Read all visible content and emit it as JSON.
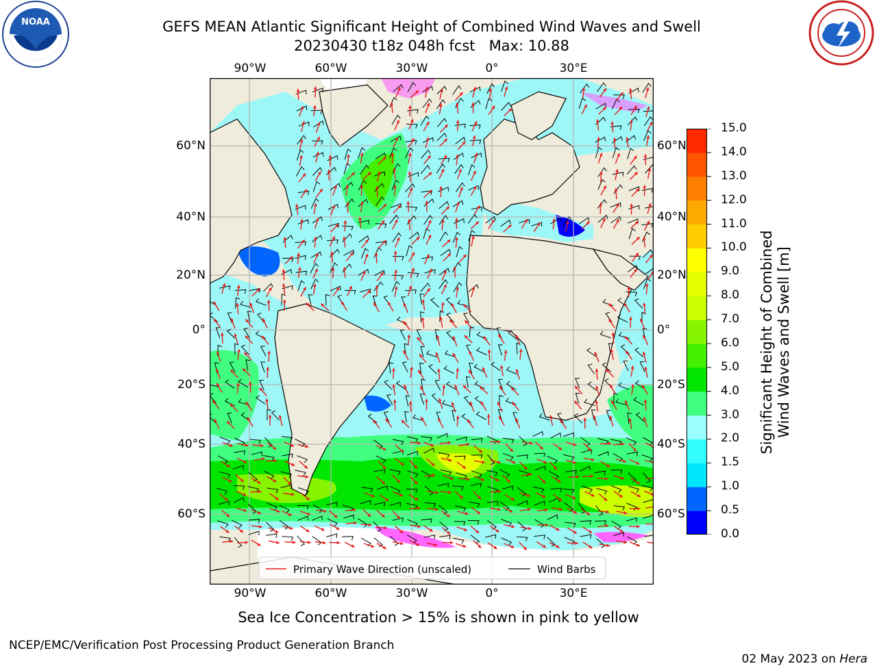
{
  "title": {
    "line1": "GEFS MEAN Atlantic Significant Height of Combined Wind Waves and Swell",
    "line2": "20230430 t18z 048h fcst   Max: 10.88"
  },
  "logos": {
    "left": {
      "name": "noaa-logo",
      "text": "NOAA"
    },
    "right": {
      "name": "nws-logo"
    }
  },
  "map": {
    "lon_ticks": [
      "90°W",
      "60°W",
      "30°W",
      "0°",
      "30°E"
    ],
    "lat_ticks_left": [
      "60°N",
      "40°N",
      "20°N",
      "0°",
      "20°S",
      "40°S",
      "60°S"
    ],
    "lat_ticks_right": [
      "60°N",
      "40°N",
      "20°N",
      "0°",
      "20°S",
      "40°S",
      "60°S"
    ],
    "legend": {
      "wave_direction": "Primary Wave Direction (unscaled)",
      "wind_barbs": "Wind Barbs"
    },
    "colors": {
      "land": "#efecdc",
      "ocean_base": "#9ef7f7",
      "grid": "#b4b4b4"
    }
  },
  "colorbar": {
    "label_line1": "Significant Height of Combined",
    "label_line2": "Wind Waves and Swell [m]",
    "ticks": [
      "0.0",
      "0.5",
      "1.0",
      "1.5",
      "2.0",
      "3.0",
      "4.0",
      "5.0",
      "6.0",
      "7.0",
      "8.0",
      "9.0",
      "10.0",
      "11.0",
      "12.0",
      "13.0",
      "14.0",
      "15.0"
    ],
    "colors": [
      "#0000ff",
      "#0066ff",
      "#00e6ff",
      "#33ffff",
      "#99ffff",
      "#40ff80",
      "#00e600",
      "#44f000",
      "#88f500",
      "#ccff00",
      "#e6ff00",
      "#ffff00",
      "#ffcc00",
      "#ffaa00",
      "#ff8000",
      "#ff5500",
      "#ff2a00",
      "#ff0000"
    ]
  },
  "caption": "Sea Ice Concentration > 15% is shown in pink to yellow",
  "footer": {
    "left": "NCEP/EMC/Verification Post Processing Product Generation Branch",
    "date": "02 May 2023 on ",
    "host": "Hera"
  }
}
